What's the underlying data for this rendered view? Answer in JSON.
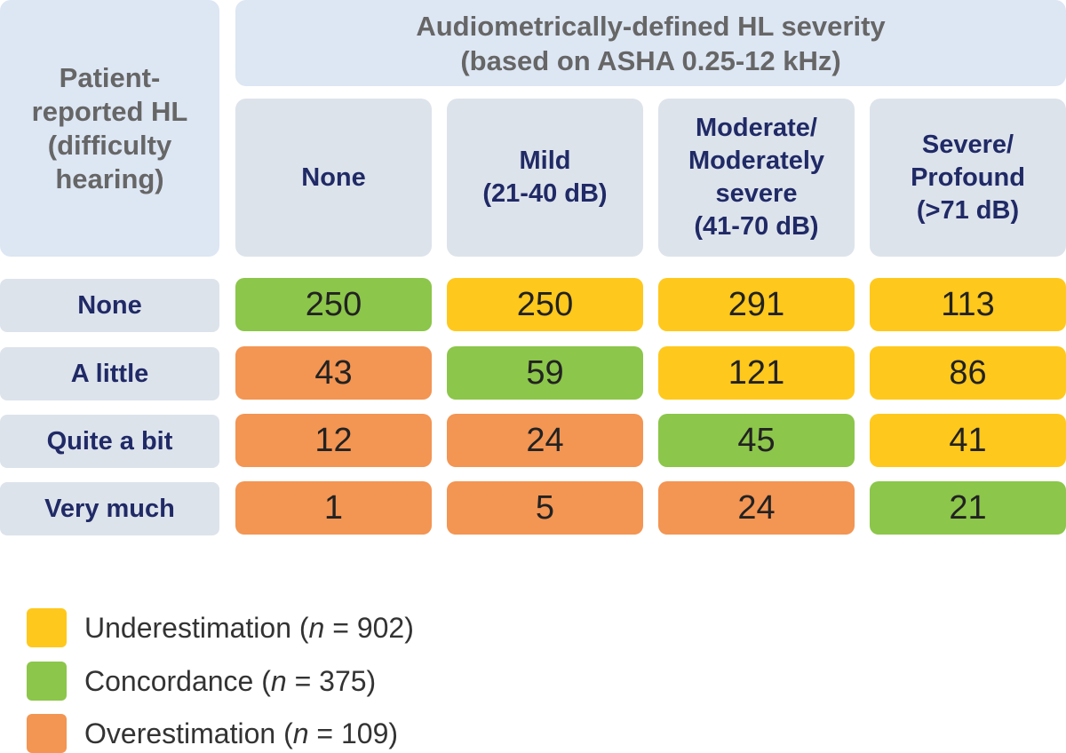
{
  "colors": {
    "underestimation": "#ffc81c",
    "concordance": "#8cc64a",
    "overestimation": "#f39553"
  },
  "corner_header": [
    "Patient-",
    "reported HL",
    "(difficulty",
    "hearing)"
  ],
  "title": [
    "Audiometrically-defined HL severity",
    "(based on ASHA 0.25-12 kHz)"
  ],
  "columns": [
    {
      "lines": [
        "None"
      ]
    },
    {
      "lines": [
        "Mild",
        "(21-40 dB)"
      ]
    },
    {
      "lines": [
        "Moderate/",
        "Moderately",
        "severe",
        "(41-70 dB)"
      ]
    },
    {
      "lines": [
        "Severe/",
        "Profound",
        "(>71 dB)"
      ]
    }
  ],
  "rows": [
    {
      "label": "None",
      "values": [
        "250",
        "250",
        "291",
        "113"
      ],
      "classes": [
        "concordance",
        "underestimation",
        "underestimation",
        "underestimation"
      ]
    },
    {
      "label": "A little",
      "values": [
        "43",
        "59",
        "121",
        "86"
      ],
      "classes": [
        "overestimation",
        "concordance",
        "underestimation",
        "underestimation"
      ]
    },
    {
      "label": "Quite a bit",
      "values": [
        "12",
        "24",
        "45",
        "41"
      ],
      "classes": [
        "overestimation",
        "overestimation",
        "concordance",
        "underestimation"
      ]
    },
    {
      "label": "Very much",
      "values": [
        "1",
        "5",
        "24",
        "21"
      ],
      "classes": [
        "overestimation",
        "overestimation",
        "overestimation",
        "concordance"
      ]
    }
  ],
  "legend": [
    {
      "key": "underestimation",
      "label": "Underestimation (",
      "n_symbol": "n",
      "n_text": " = 902)"
    },
    {
      "key": "concordance",
      "label": "Concordance (",
      "n_symbol": "n",
      "n_text": " = 375)"
    },
    {
      "key": "overestimation",
      "label": "Overestimation (",
      "n_symbol": "n",
      "n_text": " = 109)"
    }
  ]
}
